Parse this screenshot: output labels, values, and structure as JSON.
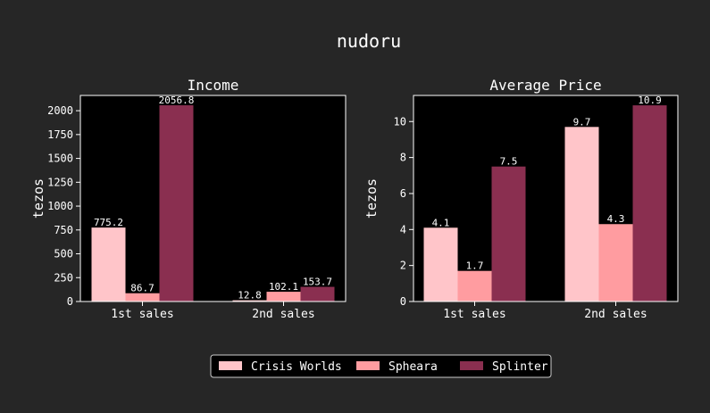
{
  "title": "nudoru",
  "colors": {
    "background": "#262626",
    "plot_background": "#000000",
    "text": "#ffffff"
  },
  "legend": {
    "placement": "bottom-center",
    "entries": [
      {
        "label": "Crisis Worlds",
        "color": "#ffc5c9"
      },
      {
        "label": "Spheara",
        "color": "#ff9ca0"
      },
      {
        "label": "Splinter",
        "color": "#8a2f50"
      }
    ]
  },
  "chart_data": [
    {
      "type": "bar",
      "title": "Income",
      "ylabel": "tezos",
      "xlabel": "",
      "categories": [
        "1st sales",
        "2nd sales"
      ],
      "ylim": [
        0,
        2160
      ],
      "yticks": [
        0,
        250,
        500,
        750,
        1000,
        1250,
        1500,
        1750,
        2000
      ],
      "grid": false,
      "series": [
        {
          "name": "Crisis Worlds",
          "values": [
            775.2,
            12.8
          ],
          "labels": [
            "775.2",
            "12.8"
          ]
        },
        {
          "name": "Spheara",
          "values": [
            86.7,
            102.1
          ],
          "labels": [
            "86.7",
            "102.1"
          ]
        },
        {
          "name": "Splinter",
          "values": [
            2056.8,
            153.7
          ],
          "labels": [
            "2056.8",
            "153.7"
          ]
        }
      ]
    },
    {
      "type": "bar",
      "title": "Average Price",
      "ylabel": "tezos",
      "xlabel": "",
      "categories": [
        "1st sales",
        "2nd sales"
      ],
      "ylim": [
        0,
        11.45
      ],
      "yticks": [
        0,
        2,
        4,
        6,
        8,
        10
      ],
      "grid": false,
      "series": [
        {
          "name": "Crisis Worlds",
          "values": [
            4.1,
            9.7
          ],
          "labels": [
            "4.1",
            "9.7"
          ]
        },
        {
          "name": "Spheara",
          "values": [
            1.7,
            4.3
          ],
          "labels": [
            "1.7",
            "4.3"
          ]
        },
        {
          "name": "Splinter",
          "values": [
            7.5,
            10.9
          ],
          "labels": [
            "7.5",
            "10.9"
          ]
        }
      ]
    }
  ]
}
